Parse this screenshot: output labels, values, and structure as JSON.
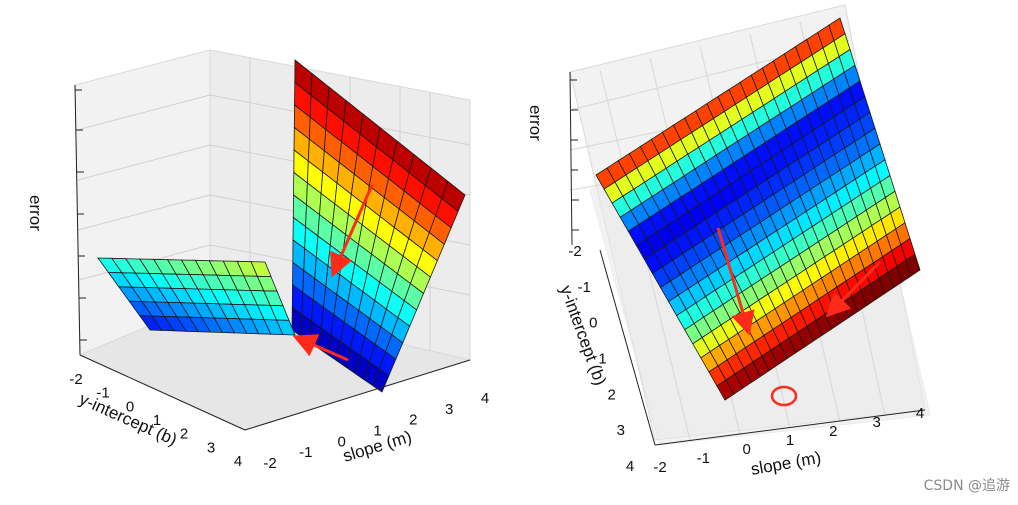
{
  "chart_data": [
    {
      "type": "surface",
      "title": "",
      "xlabel": "slope (m)",
      "ylabel": "y-intercept (b)",
      "zlabel": "error",
      "x_ticks": [
        "-2",
        "-1",
        "0",
        "1",
        "2",
        "3",
        "4"
      ],
      "y_ticks": [
        "-2",
        "-1",
        "0",
        "1",
        "2",
        "3",
        "4"
      ],
      "xlim": [
        -2,
        4
      ],
      "ylim": [
        -2,
        4
      ],
      "surface": "error grows quadratically with slope and only weakly with y-intercept (a long valley along the y-intercept axis)",
      "colormap": "jet",
      "grid": true,
      "annotations": [
        "red arrow pointing down the steep wall toward the valley",
        "red arrow pointing along the valley floor"
      ]
    },
    {
      "type": "surface",
      "title": "",
      "xlabel": "slope (m)",
      "ylabel": "y-intercept (b)",
      "zlabel": "error",
      "x_ticks": [
        "-2",
        "-1",
        "0",
        "1",
        "2",
        "3",
        "4"
      ],
      "y_ticks": [
        "-2",
        "-1",
        "0",
        "1",
        "2",
        "3",
        "4"
      ],
      "xlim": [
        -2,
        4
      ],
      "ylim": [
        -2,
        4
      ],
      "surface": "same error surface seen from another viewpoint; a bowl-shaped valley with its minimum near slope 1",
      "colormap": "jet",
      "grid": true,
      "annotations": [
        "red arrow pointing down the valley",
        "red arrow pointing down the side wall",
        "red circle marking the minimum near slope (m) = 1"
      ]
    }
  ],
  "watermark": "CSDN @追游"
}
